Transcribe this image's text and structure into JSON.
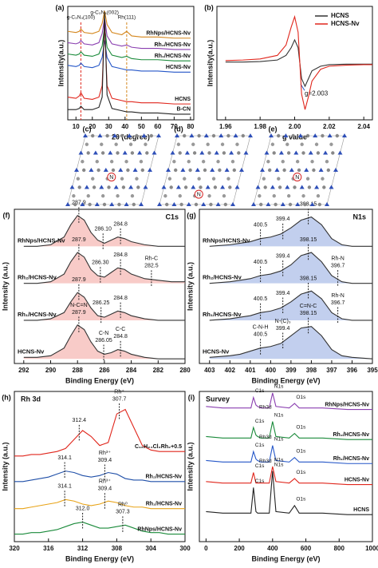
{
  "chart_data": [
    {
      "type": "line",
      "panel": "(a)",
      "x_label": "2θ (degree)",
      "y_label": "Intensity(a.u.)",
      "xlim": [
        5,
        82
      ],
      "xticks": [
        10,
        20,
        30,
        40,
        50,
        60,
        70,
        80
      ],
      "ylim": [
        0,
        100
      ],
      "legend": "inline-right",
      "x": [
        5,
        10,
        12,
        13,
        15,
        20,
        24,
        26,
        27.5,
        29,
        32,
        38,
        41,
        44,
        50,
        60,
        70,
        80
      ],
      "series": [
        {
          "name": "RhNps/HCNS-Nv",
          "color": "#d4861c",
          "values": [
            78,
            77,
            78,
            80,
            77,
            76,
            78,
            85,
            96,
            84,
            77,
            75,
            78,
            74,
            73,
            73,
            72,
            72
          ]
        },
        {
          "name": "Rh₂/HCNS-Nv",
          "color": "#8a3fb0",
          "values": [
            68,
            67,
            68,
            70,
            67,
            66,
            68,
            76,
            90,
            74,
            67,
            65,
            66,
            64,
            63,
            63,
            62,
            62
          ]
        },
        {
          "name": "Rh₁/HCNS-Nv",
          "color": "#1a8a3a",
          "values": [
            58,
            57,
            58,
            60,
            57,
            56,
            58,
            65,
            82,
            64,
            57,
            55,
            56,
            54,
            53,
            53,
            52,
            52
          ]
        },
        {
          "name": "HCNS-Nv",
          "color": "#2456c8",
          "values": [
            48,
            47,
            48,
            50,
            47,
            46,
            48,
            55,
            70,
            55,
            47,
            45,
            44,
            44,
            43,
            43,
            42,
            42
          ]
        },
        {
          "name": "HCNS",
          "color": "#e0261c",
          "values": [
            20,
            19,
            21,
            24,
            19,
            18,
            20,
            30,
            85,
            30,
            19,
            17,
            16,
            16,
            15,
            15,
            14,
            14
          ]
        },
        {
          "name": "B-CN",
          "color": "#222222",
          "values": [
            9,
            9,
            10,
            12,
            9,
            9,
            11,
            20,
            95,
            22,
            10,
            8,
            7,
            7,
            6,
            6,
            5,
            5
          ]
        }
      ],
      "annotations": [
        {
          "text": "g-C₃N₄(100)",
          "x": 13,
          "dashed": true,
          "color": "#e0261c"
        },
        {
          "text": "g-C₃N₄(002)",
          "x": 27.5
        },
        {
          "text": "Rh(111)",
          "x": 41,
          "dashed": true,
          "color": "#d4861c"
        }
      ]
    },
    {
      "type": "line",
      "panel": "(b)",
      "x_label": "g value",
      "y_label": "Intensity(a.u.)",
      "xlim": [
        1.955,
        2.045
      ],
      "xticks": [
        1.96,
        1.98,
        {
          "value": 2.0,
          "label": "2.00"
        },
        2.02,
        2.04
      ],
      "ylim": [
        -1.1,
        1.1
      ],
      "legend": "upper right",
      "x": [
        1.96,
        1.97,
        1.98,
        1.99,
        1.995,
        1.998,
        2.0,
        2.002,
        2.003,
        2.004,
        2.006,
        2.008,
        2.01,
        2.015,
        2.02,
        2.03,
        2.04,
        2.045
      ],
      "series": [
        {
          "name": "HCNS",
          "color": "#333333",
          "values": [
            0.02,
            0.02,
            0.03,
            0.06,
            0.15,
            0.3,
            0.45,
            0.3,
            0,
            -0.3,
            -0.45,
            -0.3,
            -0.15,
            -0.06,
            -0.03,
            -0.02,
            -0.02,
            -0.02
          ]
        },
        {
          "name": "HCNS-Nv",
          "color": "#e0261c",
          "values": [
            0.05,
            0.06,
            0.08,
            0.15,
            0.35,
            0.7,
            0.9,
            0.6,
            0,
            -0.6,
            -0.9,
            -0.65,
            -0.35,
            -0.12,
            -0.06,
            -0.04,
            -0.03,
            -0.03
          ]
        }
      ],
      "annotations": [
        {
          "text": "g=2.003",
          "x": 2.003,
          "y": -0.5
        }
      ]
    },
    {
      "type": "line",
      "panel": "(f)",
      "title": "C1s",
      "title_corner": "upper right",
      "x_label": "Binding Energy (eV)",
      "y_label": "Intensity (a.u.)",
      "xlim": [
        292.7,
        280
      ],
      "xticks": [
        292,
        290,
        288,
        286,
        284,
        282,
        280
      ],
      "ylim": [
        0,
        100
      ],
      "legend": "inline-left",
      "x": [
        292,
        291,
        290,
        289,
        288.5,
        288,
        287.5,
        287,
        286.5,
        286,
        285.5,
        285,
        284.5,
        284,
        283,
        282,
        281,
        280
      ],
      "series": [
        {
          "name": "RhNps/HCNS-Nv",
          "color": "#333333",
          "fill": "#f2a19b",
          "values": [
            76,
            76,
            77,
            82,
            90,
            96,
            93,
            85,
            80,
            78,
            80,
            82,
            81,
            79,
            77,
            76,
            76,
            76
          ],
          "peaks": [
            {
              "value": 287.9
            },
            {
              "value": 286.1,
              "label": "286.10"
            },
            {
              "value": 284.8
            }
          ]
        },
        {
          "name": "Rh₂/HCNS-Nv",
          "color": "#333333",
          "fill": "#f2a19b",
          "values": [
            52,
            52,
            53,
            58,
            66,
            72,
            69,
            61,
            57,
            56,
            59,
            62,
            61,
            58,
            55,
            54,
            53,
            53
          ],
          "peaks": [
            {
              "value": 287.9
            },
            {
              "value": 286.3,
              "label": "286.30"
            },
            {
              "value": 284.8
            },
            {
              "value": 282.5,
              "name": "Rh-C"
            }
          ]
        },
        {
          "name": "Rh₁/HCNS-Nv",
          "color": "#333333",
          "fill": "#f2a19b",
          "values": [
            28,
            28,
            29,
            33,
            40,
            46,
            43,
            36,
            31,
            30,
            32,
            34,
            33,
            31,
            29,
            28,
            28,
            28
          ],
          "peaks": [
            {
              "value": 287.9
            },
            {
              "value": 286.25
            },
            {
              "value": 284.8
            }
          ]
        },
        {
          "name": "HCNS-Nv",
          "color": "#333333",
          "fill": "#f2a19b",
          "values": [
            4,
            4,
            5,
            10,
            18,
            25,
            22,
            14,
            8,
            6,
            7,
            9,
            8,
            6,
            4,
            3,
            3,
            3
          ],
          "peaks": [
            {
              "value": 287.9,
              "name": "N-C=N"
            },
            {
              "value": 286.05,
              "name": "C-N"
            },
            {
              "value": 284.8,
              "name": "C-C"
            }
          ]
        }
      ]
    },
    {
      "type": "line",
      "panel": "(g)",
      "title": "N1s",
      "title_corner": "upper right",
      "x_label": "Binding Energy (eV)",
      "y_label": "Intensity (a.u.)",
      "xlim": [
        403.5,
        395
      ],
      "xticks": [
        403,
        402,
        401,
        400,
        399,
        398,
        397,
        396,
        395
      ],
      "ylim": [
        0,
        100
      ],
      "legend": "inline-left",
      "x": [
        403,
        402,
        401.5,
        401,
        400.5,
        400,
        399.5,
        399,
        398.5,
        398,
        397.5,
        397,
        396.5,
        396,
        395
      ],
      "series": [
        {
          "name": "RhNps/HCNS-Nv",
          "color": "#333333",
          "fill": "#8fa8e0",
          "values": [
            76,
            77,
            78,
            79,
            81,
            82,
            84,
            88,
            93,
            95,
            90,
            81,
            77,
            76,
            76
          ],
          "peaks": [
            {
              "value": 400.5
            },
            {
              "value": 399.4
            },
            {
              "value": 398.15
            }
          ]
        },
        {
          "name": "Rh₂/HCNS-Nv",
          "color": "#333333",
          "fill": "#8fa8e0",
          "values": [
            52,
            53,
            54,
            55,
            57,
            58,
            60,
            64,
            70,
            72,
            66,
            57,
            53,
            52,
            52
          ],
          "peaks": [
            {
              "value": 400.5
            },
            {
              "value": 399.4
            },
            {
              "value": 398.15
            },
            {
              "value": 396.7,
              "name": "Rh-N"
            }
          ]
        },
        {
          "name": "Rh₁/HCNS-Nv",
          "color": "#333333",
          "fill": "#8fa8e0",
          "values": [
            28,
            29,
            30,
            31,
            33,
            34,
            36,
            40,
            45,
            47,
            42,
            33,
            29,
            28,
            28
          ],
          "peaks": [
            {
              "value": 400.5
            },
            {
              "value": 399.4
            },
            {
              "value": 398.15
            },
            {
              "value": 396.7,
              "name": "Rh-N"
            }
          ]
        },
        {
          "name": "HCNS-Nv",
          "color": "#333333",
          "fill": "#8fa8e0",
          "values": [
            4,
            5,
            6,
            8,
            10,
            11,
            13,
            18,
            23,
            24,
            18,
            9,
            5,
            4,
            3
          ],
          "peaks": [
            {
              "value": 400.5,
              "name": "C-N-H"
            },
            {
              "value": 399.4,
              "name": "N-(C)₃"
            },
            {
              "value": 398.15,
              "name": "C=N-C"
            }
          ]
        }
      ]
    },
    {
      "type": "line",
      "panel": "(h)",
      "title": "Rh 3d",
      "title_corner": "upper left",
      "x_label": "Binding Energy (eV)",
      "y_label": "Intensity (a.u.)",
      "xlim": [
        320,
        300
      ],
      "xticks": [
        320,
        316,
        312,
        308,
        304,
        300
      ],
      "ylim": [
        0,
        100
      ],
      "legend": "inline-right",
      "x": [
        320,
        319,
        318,
        317,
        316,
        315,
        314,
        313,
        312,
        311,
        310,
        309,
        308,
        307,
        306,
        305,
        304,
        303,
        302,
        301,
        300
      ],
      "series": [
        {
          "name": "C₁₆H₂₄Cl₂Rh₂+0.5",
          "color": "#e0261c",
          "values": [
            57,
            57,
            58,
            58,
            59,
            60,
            62,
            68,
            74,
            70,
            64,
            66,
            85,
            88,
            76,
            64,
            61,
            60,
            60,
            60,
            60
          ],
          "peaks": [
            {
              "value": 312.4
            },
            {
              "value": 307.7,
              "name": "Rh⁺"
            }
          ]
        },
        {
          "name": "Rh₂/HCNS-Nv",
          "color": "#1f4fa8",
          "values": [
            40,
            40,
            41,
            42,
            43,
            45,
            47,
            46,
            44,
            43,
            44,
            46,
            45,
            42,
            41,
            41,
            40,
            40,
            40,
            40,
            40
          ],
          "peaks": [
            {
              "value": 314.1
            },
            {
              "value": 309.4,
              "name": "Rh³⁺"
            }
          ]
        },
        {
          "name": "Rh₁/HCNS-Nv",
          "color": "#e8a317",
          "values": [
            22,
            22,
            23,
            24,
            25,
            26,
            28,
            27,
            25,
            24,
            25,
            27,
            26,
            24,
            23,
            23,
            22,
            22,
            22,
            22,
            22
          ],
          "peaks": [
            {
              "value": 314.1
            },
            {
              "value": 309.4,
              "name": "Rh³⁺"
            }
          ]
        },
        {
          "name": "RhNps/HCNS-Nv",
          "color": "#1a8a3a",
          "values": [
            5,
            5,
            6,
            6,
            7,
            8,
            10,
            12,
            13,
            11,
            9,
            9,
            10,
            11,
            9,
            7,
            6,
            6,
            5,
            5,
            5
          ],
          "peaks": [
            {
              "value": 312,
              "label": "312.0"
            },
            {
              "value": 307.3,
              "name": "Rh⁰"
            }
          ]
        }
      ]
    },
    {
      "type": "line",
      "panel": "(i)",
      "title": "Survey",
      "title_corner": "upper left",
      "x_label": "Binding Energy (eV)",
      "y_label": "Intensity (a.u.)",
      "xlim": [
        -40,
        1000
      ],
      "xticks": [
        0,
        200,
        400,
        600,
        800,
        1000
      ],
      "ylim": [
        0,
        100
      ],
      "legend": "inline-right",
      "x": [
        0,
        100,
        200,
        270,
        285,
        300,
        310,
        330,
        380,
        400,
        420,
        500,
        532,
        560,
        700,
        850,
        1000
      ],
      "series": [
        {
          "name": "RhNps/HCNS-Nv",
          "color": "#8a3fb0",
          "values": [
            90,
            89,
            89,
            89,
            96,
            91,
            90,
            89,
            89,
            99,
            90,
            89,
            92,
            89,
            89,
            88,
            88
          ],
          "peaks": [
            {
              "x": 285,
              "name": "C1s"
            },
            {
              "x": 310,
              "name": "Rh3d"
            },
            {
              "x": 400,
              "name": "N1s"
            },
            {
              "x": 532,
              "name": "O1s"
            }
          ]
        },
        {
          "name": "Rh₂/HCNS-Nv",
          "color": "#1a8a3a",
          "values": [
            70,
            69,
            69,
            69,
            76,
            71,
            70,
            69,
            69,
            80,
            70,
            69,
            72,
            69,
            69,
            68,
            68
          ],
          "peaks": [
            {
              "x": 285,
              "name": "C1s"
            },
            {
              "x": 310,
              "name": "Rh3d"
            },
            {
              "x": 400,
              "name": "N1s"
            },
            {
              "x": 532,
              "name": "O1s"
            }
          ]
        },
        {
          "name": "Rh₁/HCNS-Nv",
          "color": "#2456c8",
          "values": [
            54,
            53,
            53,
            53,
            60,
            55,
            54,
            53,
            53,
            64,
            54,
            53,
            56,
            53,
            53,
            52,
            52
          ],
          "peaks": [
            {
              "x": 285,
              "name": "C1s"
            },
            {
              "x": 310,
              "name": "Rh3d"
            },
            {
              "x": 400,
              "name": "N1s"
            },
            {
              "x": 532,
              "name": "O1s"
            }
          ]
        },
        {
          "name": "HCNS-Nv",
          "color": "#e0261c",
          "values": [
            40,
            39,
            39,
            39,
            46,
            39,
            39,
            39,
            39,
            50,
            40,
            39,
            42,
            39,
            39,
            38,
            38
          ],
          "peaks": [
            {
              "x": 285,
              "name": "C1s"
            },
            {
              "x": 400,
              "name": "N1s"
            },
            {
              "x": 532,
              "name": "O1s"
            }
          ]
        },
        {
          "name": "HCNS",
          "color": "#222222",
          "values": [
            20,
            19,
            19,
            19,
            36,
            20,
            19,
            19,
            19,
            47,
            20,
            19,
            24,
            19,
            19,
            18,
            18
          ],
          "peaks": [
            {
              "x": 285,
              "name": "C1s"
            },
            {
              "x": 400,
              "name": "N1s"
            },
            {
              "x": 532,
              "name": "O1s"
            }
          ]
        }
      ]
    }
  ],
  "structures": [
    {
      "label": "(c)",
      "marker": "N"
    },
    {
      "label": "(d)",
      "marker": "N"
    },
    {
      "label": "(e)",
      "marker": "N"
    }
  ]
}
